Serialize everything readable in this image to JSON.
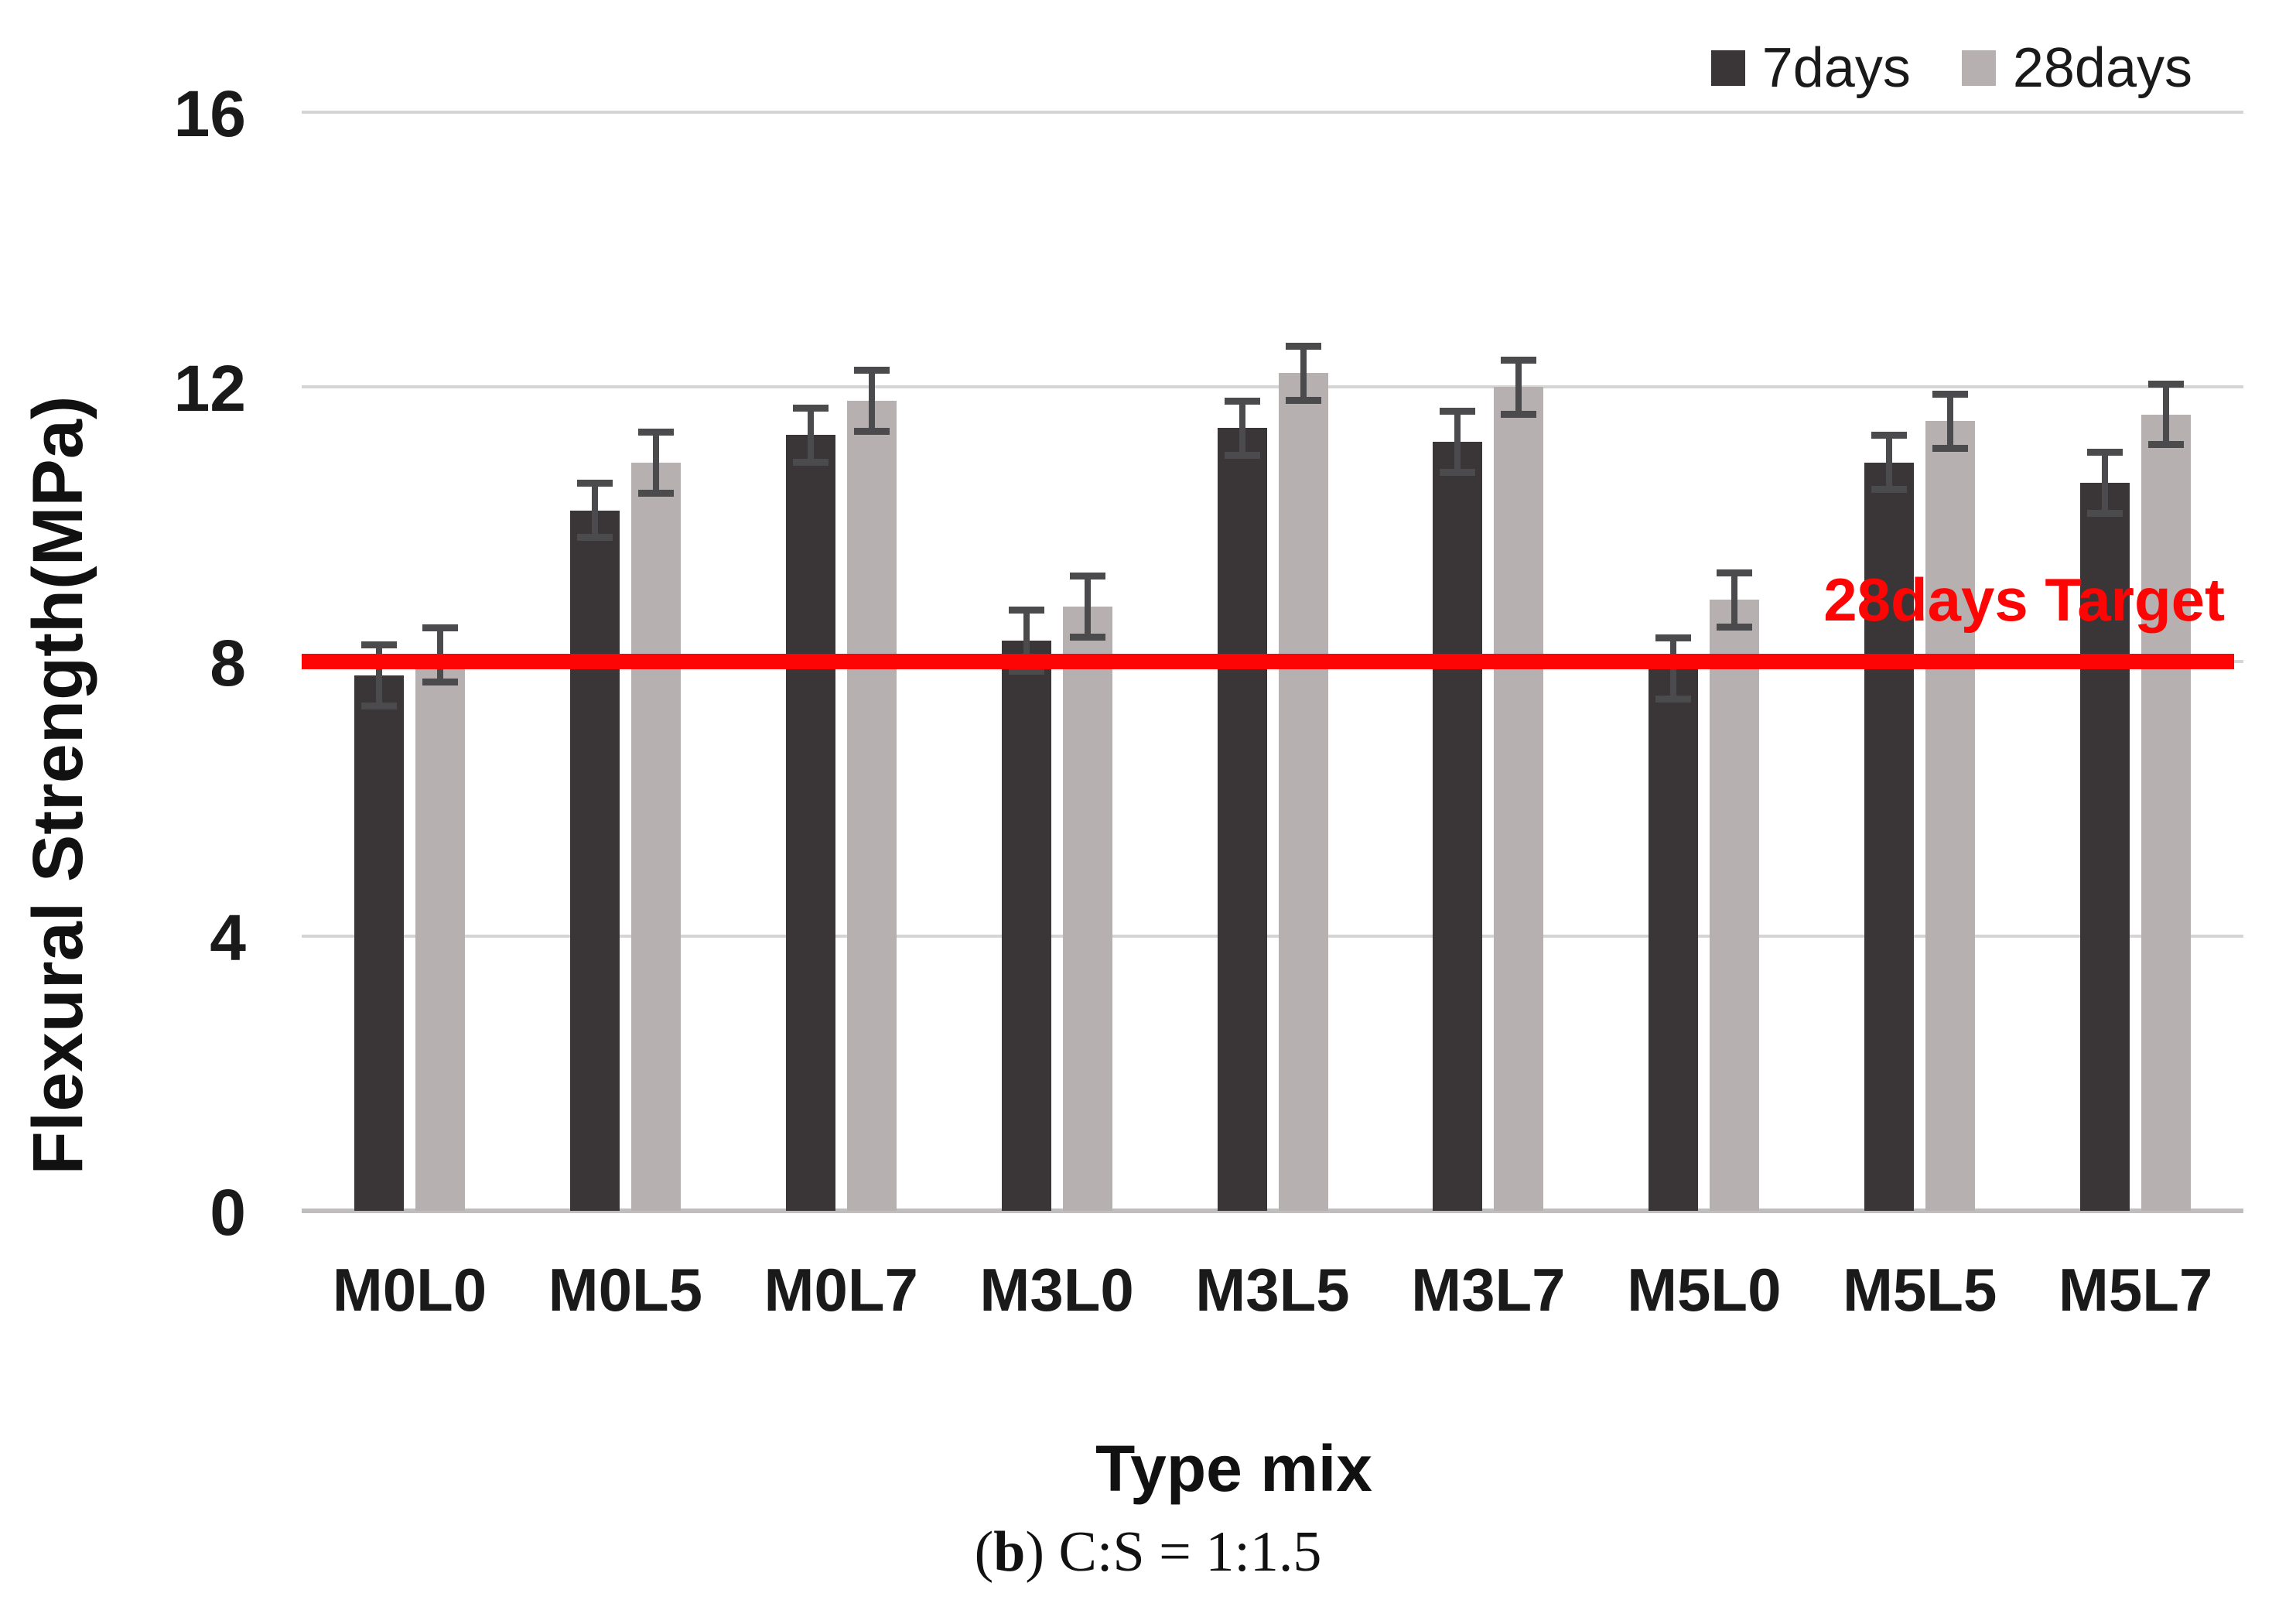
{
  "chart_data": {
    "type": "bar",
    "title": "",
    "categories": [
      "M0L0",
      "M0L5",
      "M0L7",
      "M3L0",
      "M3L5",
      "M3L7",
      "M5L0",
      "M5L5",
      "M5L7"
    ],
    "series": [
      {
        "name": "7days",
        "color": "#3A3536",
        "values": [
          7.8,
          10.2,
          11.3,
          8.3,
          11.4,
          11.2,
          7.9,
          10.9,
          10.6
        ],
        "errors": [
          0.45,
          0.4,
          0.4,
          0.45,
          0.4,
          0.45,
          0.45,
          0.4,
          0.45
        ]
      },
      {
        "name": "28days",
        "color": "#B6B1B0",
        "values": [
          8.1,
          10.9,
          11.8,
          8.8,
          12.2,
          12.0,
          8.9,
          11.5,
          11.6
        ],
        "errors": [
          0.4,
          0.45,
          0.45,
          0.45,
          0.4,
          0.4,
          0.4,
          0.4,
          0.45
        ]
      }
    ],
    "xlabel": "Type mix",
    "ylabel": "Flexural Strength(MPa)",
    "ylim": [
      0,
      16
    ],
    "yticks": [
      0,
      4,
      8,
      12,
      16
    ],
    "grid": true,
    "legend_position": "top-right",
    "target_line": {
      "value": 8,
      "label": "28days Target",
      "color": "#FE0505"
    },
    "error_bar_color": "#4B4B4E",
    "gridline_color": "#D6D4D4",
    "axisline_color": "#BFBDBD"
  },
  "figure": {
    "caption_open": "(",
    "caption_label": "b",
    "caption_rest": ") C:S = 1:1.5"
  }
}
